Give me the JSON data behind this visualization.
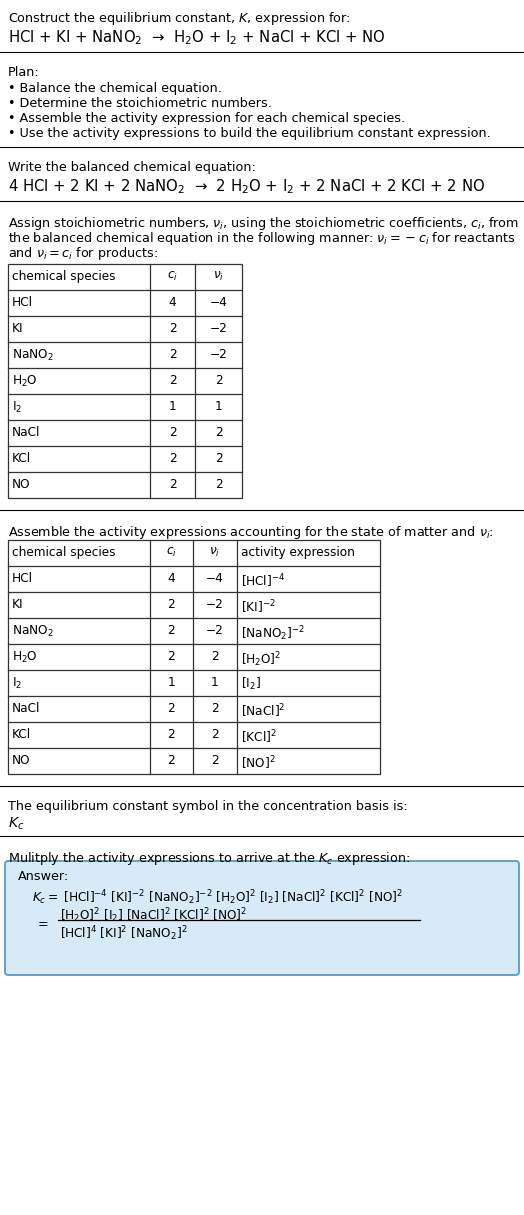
{
  "bg_color": "#ffffff",
  "title_line1": "Construct the equilibrium constant, $K$, expression for:",
  "title_line2": "HCl + KI + NaNO$_2$  →  H$_2$O + I$_2$ + NaCl + KCl + NO",
  "plan_header": "Plan:",
  "plan_items": [
    "• Balance the chemical equation.",
    "• Determine the stoichiometric numbers.",
    "• Assemble the activity expression for each chemical species.",
    "• Use the activity expressions to build the equilibrium constant expression."
  ],
  "balanced_eq_header": "Write the balanced chemical equation:",
  "balanced_eq": "4 HCl + 2 KI + 2 NaNO$_2$  →  2 H$_2$O + I$_2$ + 2 NaCl + 2 KCl + 2 NO",
  "stoich_lines": [
    "Assign stoichiometric numbers, $\\nu_i$, using the stoichiometric coefficients, $c_i$, from",
    "the balanced chemical equation in the following manner: $\\nu_i = -c_i$ for reactants",
    "and $\\nu_i = c_i$ for products:"
  ],
  "table1_headers": [
    "chemical species",
    "$c_i$",
    "$\\nu_i$"
  ],
  "table1_data": [
    [
      "HCl",
      "4",
      "−4"
    ],
    [
      "KI",
      "2",
      "−2"
    ],
    [
      "NaNO$_2$",
      "2",
      "−2"
    ],
    [
      "H$_2$O",
      "2",
      "2"
    ],
    [
      "I$_2$",
      "1",
      "1"
    ],
    [
      "NaCl",
      "2",
      "2"
    ],
    [
      "KCl",
      "2",
      "2"
    ],
    [
      "NO",
      "2",
      "2"
    ]
  ],
  "activity_header": "Assemble the activity expressions accounting for the state of matter and $\\nu_i$:",
  "table2_headers": [
    "chemical species",
    "$c_i$",
    "$\\nu_i$",
    "activity expression"
  ],
  "table2_data": [
    [
      "HCl",
      "4",
      "−4",
      "[HCl]$^{-4}$"
    ],
    [
      "KI",
      "2",
      "−2",
      "[KI]$^{-2}$"
    ],
    [
      "NaNO$_2$",
      "2",
      "−2",
      "[NaNO$_2$]$^{-2}$"
    ],
    [
      "H$_2$O",
      "2",
      "2",
      "[H$_2$O]$^2$"
    ],
    [
      "I$_2$",
      "1",
      "1",
      "[I$_2$]"
    ],
    [
      "NaCl",
      "2",
      "2",
      "[NaCl]$^2$"
    ],
    [
      "KCl",
      "2",
      "2",
      "[KCl]$^2$"
    ],
    [
      "NO",
      "2",
      "2",
      "[NO]$^2$"
    ]
  ],
  "kc_header": "The equilibrium constant symbol in the concentration basis is:",
  "kc_symbol": "$K_c$",
  "multiply_header": "Mulitply the activity expressions to arrive at the $K_c$ expression:",
  "answer_box_color": "#d6eaf8",
  "answer_box_edge": "#5b9bbf"
}
